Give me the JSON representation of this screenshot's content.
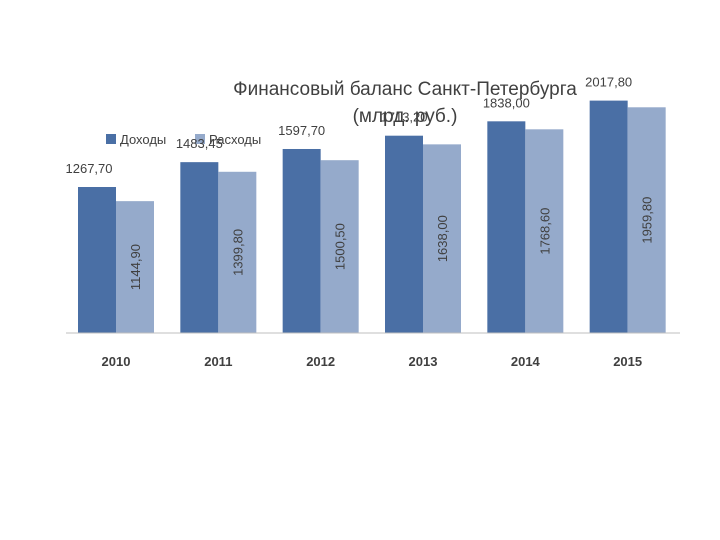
{
  "chart_data": {
    "type": "bar",
    "title": "Финансовый баланс Санкт-Петербурга",
    "subtitle": "(млрд. руб.)",
    "categories": [
      "2010",
      "2011",
      "2012",
      "2013",
      "2014",
      "2015"
    ],
    "series": [
      {
        "name": "Доходы",
        "color": "#4a6fa5",
        "values": [
          1267.7,
          1483.45,
          1597.7,
          1713.2,
          1838.0,
          2017.8
        ],
        "labels": [
          "1267,70",
          "1483,45",
          "1597,70",
          "1713,20",
          "1838,00",
          "2017,80"
        ]
      },
      {
        "name": "Расходы",
        "color": "#95aacb",
        "values": [
          1144.9,
          1399.8,
          1500.5,
          1638.0,
          1768.6,
          1959.8
        ],
        "labels": [
          "1144,90",
          "1399,80",
          "1500,50",
          "1638,00",
          "1768,60",
          "1959,80"
        ]
      }
    ],
    "legend_position": "top-left",
    "grid": false,
    "ylim": [
      0,
      2100
    ]
  }
}
